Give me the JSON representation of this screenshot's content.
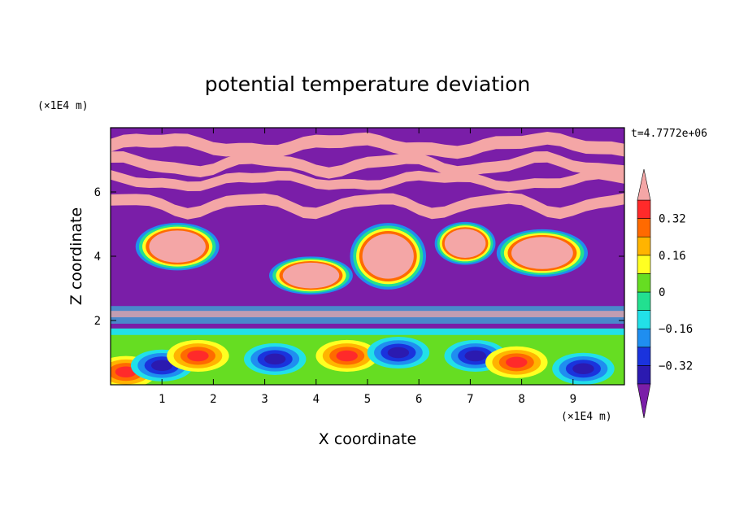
{
  "chart_data": {
    "type": "heatmap",
    "title": "potential temperature deviation",
    "xlabel": "X coordinate",
    "ylabel": "Z coordinate",
    "x_unit": "(×1E4 m)",
    "y_unit": "(×1E4 m)",
    "time_label": "t=4.7772e+06",
    "xlim": [
      0,
      10
    ],
    "ylim": [
      0,
      8
    ],
    "x_ticks": [
      "1",
      "2",
      "3",
      "4",
      "5",
      "6",
      "7",
      "8",
      "9"
    ],
    "y_ticks": [
      "2",
      "4",
      "6"
    ],
    "colorbar": {
      "labels": [
        "0.32",
        "0.16",
        "0",
        "−0.16",
        "−0.32"
      ],
      "label_values": [
        0.32,
        0.16,
        0,
        -0.16,
        -0.32
      ],
      "levels": [
        -0.4,
        -0.32,
        -0.24,
        -0.16,
        -0.08,
        0,
        0.08,
        0.16,
        0.24,
        0.32,
        0.4
      ],
      "colors": [
        "#7a1ea8",
        "#2b1ab0",
        "#1a33dd",
        "#1f8ef0",
        "#22e0e8",
        "#22e090",
        "#66dd22",
        "#ffff22",
        "#ffb400",
        "#ff6a00",
        "#ff2a2a",
        "#f4a6a6"
      ],
      "extend": "both"
    },
    "plumes": [
      {
        "x": 1.3,
        "z": 4.3,
        "w": 1.1,
        "h": 1.0
      },
      {
        "x": 3.9,
        "z": 3.4,
        "w": 1.1,
        "h": 0.8
      },
      {
        "x": 5.4,
        "z": 4.0,
        "w": 1.0,
        "h": 1.4
      },
      {
        "x": 6.9,
        "z": 4.4,
        "w": 0.8,
        "h": 0.9
      },
      {
        "x": 8.4,
        "z": 4.1,
        "w": 1.2,
        "h": 1.0
      }
    ],
    "eddies": [
      {
        "x": 0.3,
        "z": 0.4,
        "sign": 1
      },
      {
        "x": 1.0,
        "z": 0.6,
        "sign": -1
      },
      {
        "x": 1.7,
        "z": 0.9,
        "sign": 1
      },
      {
        "x": 3.2,
        "z": 0.8,
        "sign": -1
      },
      {
        "x": 4.6,
        "z": 0.9,
        "sign": 1
      },
      {
        "x": 5.6,
        "z": 1.0,
        "sign": -1
      },
      {
        "x": 7.1,
        "z": 0.9,
        "sign": -1
      },
      {
        "x": 7.9,
        "z": 0.7,
        "sign": 1
      },
      {
        "x": 9.2,
        "z": 0.5,
        "sign": -1
      }
    ]
  }
}
